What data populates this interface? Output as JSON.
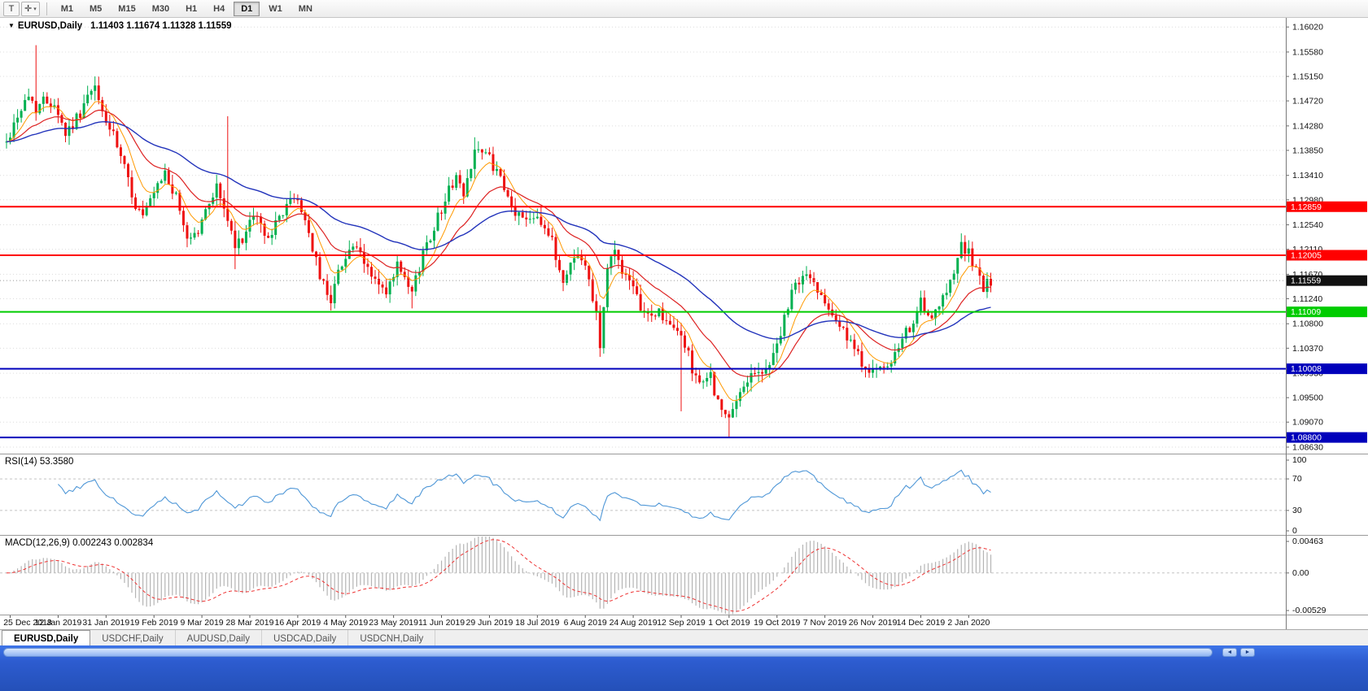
{
  "toolbar": {
    "chart_type_button": "T",
    "cursor_button": "✛",
    "cursor_caret": "▾",
    "timeframes": [
      {
        "label": "M1",
        "active": false
      },
      {
        "label": "M5",
        "active": false
      },
      {
        "label": "M15",
        "active": false
      },
      {
        "label": "M30",
        "active": false
      },
      {
        "label": "H1",
        "active": false
      },
      {
        "label": "H4",
        "active": false
      },
      {
        "label": "D1",
        "active": true
      },
      {
        "label": "W1",
        "active": false
      },
      {
        "label": "MN",
        "active": false
      }
    ]
  },
  "header": {
    "collapse_icon": "▼",
    "symbol": "EURUSD,Daily",
    "ohlc": "1.11403 1.11674 1.11328 1.11559"
  },
  "price_axis": {
    "ticks": [
      "1.16020",
      "1.15580",
      "1.15150",
      "1.14720",
      "1.14280",
      "1.13850",
      "1.13410",
      "1.12980",
      "1.12540",
      "1.12110",
      "1.11670",
      "1.11240",
      "1.10800",
      "1.10370",
      "1.09930",
      "1.09500",
      "1.09070",
      "1.08630"
    ]
  },
  "date_axis": {
    "labels": [
      "25 Dec 2018",
      "12 Jan 2019",
      "31 Jan 2019",
      "19 Feb 2019",
      "9 Mar 2019",
      "28 Mar 2019",
      "16 Apr 2019",
      "4 May 2019",
      "23 May 2019",
      "11 Jun 2019",
      "29 Jun 2019",
      "18 Jul 2019",
      "6 Aug 2019",
      "24 Aug 2019",
      "12 Sep 2019",
      "1 Oct 2019",
      "19 Oct 2019",
      "7 Nov 2019",
      "26 Nov 2019",
      "14 Dec 2019",
      "2 Jan 2020"
    ],
    "label_start_index": 1,
    "label_every": 13
  },
  "panels": {
    "rsi_label": "RSI(14) 53.3580",
    "rsi_ticks": [
      "100",
      "70",
      "30",
      "0"
    ],
    "macd_label": "MACD(12,26,9) 0.002243 0.002834",
    "macd_ticks": [
      "0.00463",
      "0.00",
      "-0.00529"
    ]
  },
  "levels": [
    {
      "label": "1.12859",
      "value": 1.12859,
      "color": "#ff0000"
    },
    {
      "label": "1.12005",
      "value": 1.12005,
      "color": "#ff0000"
    },
    {
      "label": "1.11009",
      "value": 1.11009,
      "color": "#00cc00"
    },
    {
      "label": "1.10008",
      "value": 1.10008,
      "color": "#0000bb"
    },
    {
      "label": "1.08800",
      "value": 1.088,
      "color": "#0000bb"
    }
  ],
  "current_price": {
    "label": "1.11559",
    "value": 1.11559,
    "bg": "#111111"
  },
  "tabs": [
    {
      "label": "EURUSD,Daily",
      "active": true
    },
    {
      "label": "USDCHF,Daily",
      "active": false
    },
    {
      "label": "AUDUSD,Daily",
      "active": false
    },
    {
      "label": "USDCAD,Daily",
      "active": false
    },
    {
      "label": "USDCNH,Daily",
      "active": false
    }
  ],
  "footer": {
    "left_arrow": "◄",
    "right_arrow": "►"
  },
  "chart_data": {
    "type": "candlestick",
    "symbol": "EURUSD",
    "timeframe": "Daily",
    "count": 268,
    "seed": 42,
    "bull_color": "#00b050",
    "bear_color": "#ee1010",
    "price_range": {
      "top": 1.1618,
      "bottom": 1.0853
    },
    "close_waypoints": [
      [
        0,
        1.1398
      ],
      [
        3,
        1.1448
      ],
      [
        6,
        1.148
      ],
      [
        8,
        1.146
      ],
      [
        10,
        1.1472
      ],
      [
        13,
        1.147
      ],
      [
        16,
        1.1415
      ],
      [
        19,
        1.144
      ],
      [
        22,
        1.1478
      ],
      [
        24,
        1.1492
      ],
      [
        26,
        1.1452
      ],
      [
        29,
        1.1408
      ],
      [
        32,
        1.1352
      ],
      [
        35,
        1.1288
      ],
      [
        37,
        1.1268
      ],
      [
        40,
        1.1305
      ],
      [
        43,
        1.1345
      ],
      [
        46,
        1.13
      ],
      [
        49,
        1.1232
      ],
      [
        52,
        1.1242
      ],
      [
        55,
        1.1295
      ],
      [
        57,
        1.1322
      ],
      [
        60,
        1.1262
      ],
      [
        62,
        1.1212
      ],
      [
        65,
        1.1242
      ],
      [
        68,
        1.1272
      ],
      [
        70,
        1.1232
      ],
      [
        73,
        1.1252
      ],
      [
        76,
        1.1292
      ],
      [
        79,
        1.1298
      ],
      [
        81,
        1.1262
      ],
      [
        83,
        1.1215
      ],
      [
        85,
        1.116
      ],
      [
        88,
        1.1125
      ],
      [
        91,
        1.119
      ],
      [
        94,
        1.1218
      ],
      [
        97,
        1.1185
      ],
      [
        100,
        1.1158
      ],
      [
        103,
        1.1128
      ],
      [
        106,
        1.1182
      ],
      [
        108,
        1.1152
      ],
      [
        110,
        1.1132
      ],
      [
        113,
        1.1205
      ],
      [
        116,
        1.1252
      ],
      [
        119,
        1.13
      ],
      [
        122,
        1.1342
      ],
      [
        124,
        1.1302
      ],
      [
        127,
        1.1392
      ],
      [
        129,
        1.1378
      ],
      [
        131,
        1.1372
      ],
      [
        134,
        1.133
      ],
      [
        137,
        1.1282
      ],
      [
        140,
        1.1265
      ],
      [
        144,
        1.1275
      ],
      [
        148,
        1.1222
      ],
      [
        151,
        1.1152
      ],
      [
        154,
        1.1205
      ],
      [
        157,
        1.1182
      ],
      [
        160,
        1.1105
      ],
      [
        161,
        1.1042
      ],
      [
        163,
        1.1178
      ],
      [
        165,
        1.1208
      ],
      [
        168,
        1.1162
      ],
      [
        171,
        1.1122
      ],
      [
        174,
        1.1092
      ],
      [
        177,
        1.1102
      ],
      [
        180,
        1.1072
      ],
      [
        183,
        1.1062
      ],
      [
        186,
        1.1002
      ],
      [
        189,
        1.0968
      ],
      [
        191,
        1.0992
      ],
      [
        193,
        1.0938
      ],
      [
        196,
        1.0908
      ],
      [
        199,
        1.0958
      ],
      [
        202,
        1.0998
      ],
      [
        205,
        1.0988
      ],
      [
        209,
        1.1042
      ],
      [
        212,
        1.1108
      ],
      [
        214,
        1.1152
      ],
      [
        217,
        1.1165
      ],
      [
        220,
        1.1142
      ],
      [
        223,
        1.1115
      ],
      [
        226,
        1.1078
      ],
      [
        229,
        1.1042
      ],
      [
        232,
        1.1012
      ],
      [
        235,
        1.0998
      ],
      [
        238,
        1.0995
      ],
      [
        241,
        1.1022
      ],
      [
        244,
        1.1062
      ],
      [
        248,
        1.1115
      ],
      [
        251,
        1.1082
      ],
      [
        254,
        1.1122
      ],
      [
        257,
        1.1178
      ],
      [
        259,
        1.1218
      ],
      [
        261,
        1.1202
      ],
      [
        263,
        1.1172
      ],
      [
        265,
        1.1142
      ],
      [
        267,
        1.1156
      ]
    ],
    "wick_overrides": [
      {
        "i": 8,
        "h": 1.157
      },
      {
        "i": 24,
        "h": 1.1515
      },
      {
        "i": 60,
        "h": 1.1445
      },
      {
        "i": 62,
        "l": 1.1176
      },
      {
        "i": 110,
        "l": 1.1107
      },
      {
        "i": 127,
        "h": 1.1408
      },
      {
        "i": 161,
        "l": 1.1027
      },
      {
        "i": 183,
        "l": 1.0926
      },
      {
        "i": 196,
        "l": 1.0879
      },
      {
        "i": 259,
        "h": 1.1239
      }
    ],
    "moving_averages": [
      {
        "period": 8,
        "color": "#ff9900",
        "width": 1
      },
      {
        "period": 21,
        "color": "#dd2222",
        "width": 1.2
      },
      {
        "period": 55,
        "color": "#2233bb",
        "width": 1.4
      }
    ],
    "rsi": {
      "period": 14,
      "range": [
        0,
        100
      ],
      "guides": [
        70,
        30
      ],
      "color": "#4f97d7",
      "current": 53.358
    },
    "macd": {
      "fast": 12,
      "slow": 26,
      "signal": 9,
      "range": [
        -0.00529,
        0.00463
      ],
      "histogram_color": "#b4b4b4",
      "signal_color": "#ee3333",
      "values_text": "0.002243 0.002834"
    }
  }
}
